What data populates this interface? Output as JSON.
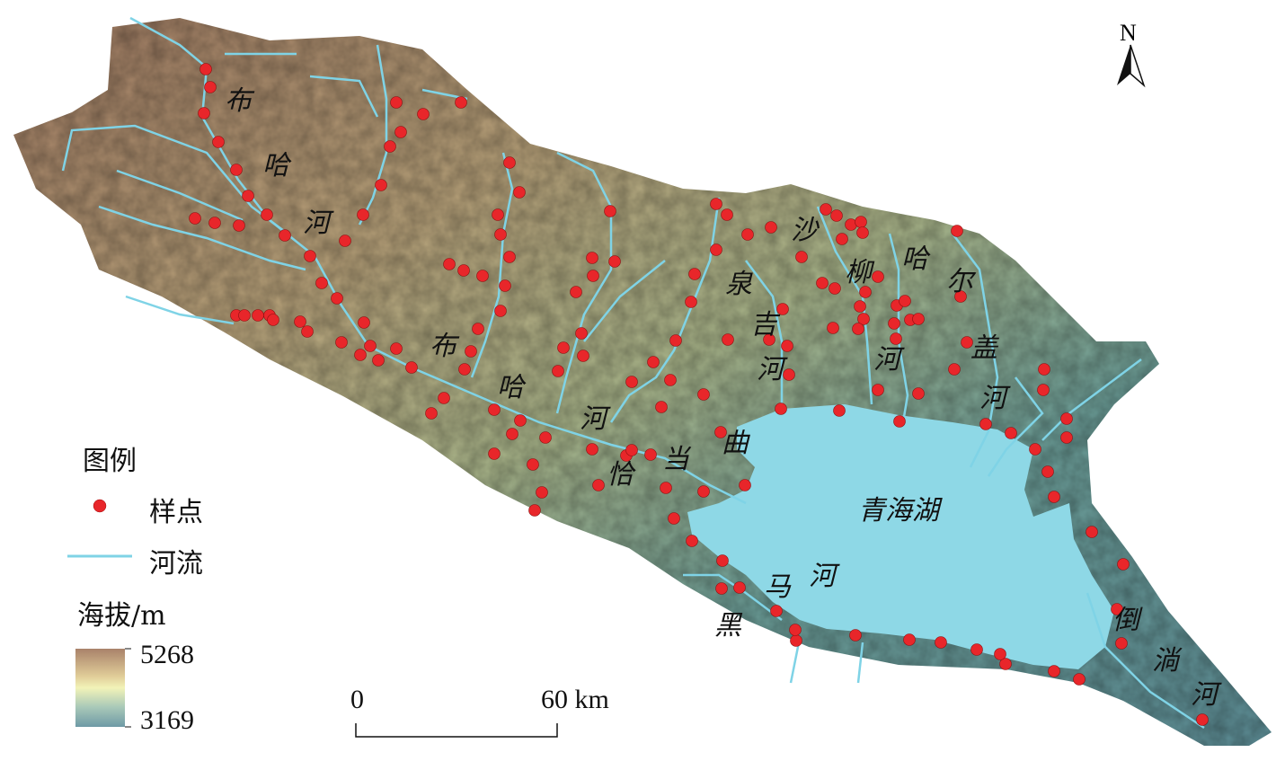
{
  "map": {
    "lake_name": "青海湖",
    "river_labels": [
      {
        "name": "布哈河",
        "chars": [
          "布",
          "哈",
          "河"
        ]
      },
      {
        "name": "布哈河",
        "chars": [
          "布",
          "哈",
          "河"
        ]
      },
      {
        "name": "沙柳河",
        "chars": [
          "沙",
          "柳",
          "河"
        ]
      },
      {
        "name": "泉吉河",
        "chars": [
          "泉",
          "吉",
          "河"
        ]
      },
      {
        "name": "哈尔盖河",
        "chars": [
          "哈",
          "尔",
          "盖",
          "河"
        ]
      },
      {
        "name": "恰当曲",
        "chars": [
          "恰",
          "当",
          "曲"
        ]
      },
      {
        "name": "黑马河",
        "chars": [
          "黑",
          "马",
          "河"
        ]
      },
      {
        "name": "倒淌河",
        "chars": [
          "倒",
          "淌",
          "河"
        ]
      }
    ],
    "north_arrow": "N",
    "scale_bar": {
      "start": "0",
      "end": "60 km"
    },
    "colors": {
      "sample": "#e8262a",
      "river": "#7fd3e6",
      "lake": "#8ed8e6",
      "high": "#a9826a",
      "mid": "#f2f0b8",
      "low": "#6fa0aa"
    }
  },
  "legend": {
    "title": "图例",
    "sample_label": "样点",
    "river_label": "河流",
    "elevation_title": "海拔/m",
    "elev_max": "5268",
    "elev_min": "3169"
  }
}
